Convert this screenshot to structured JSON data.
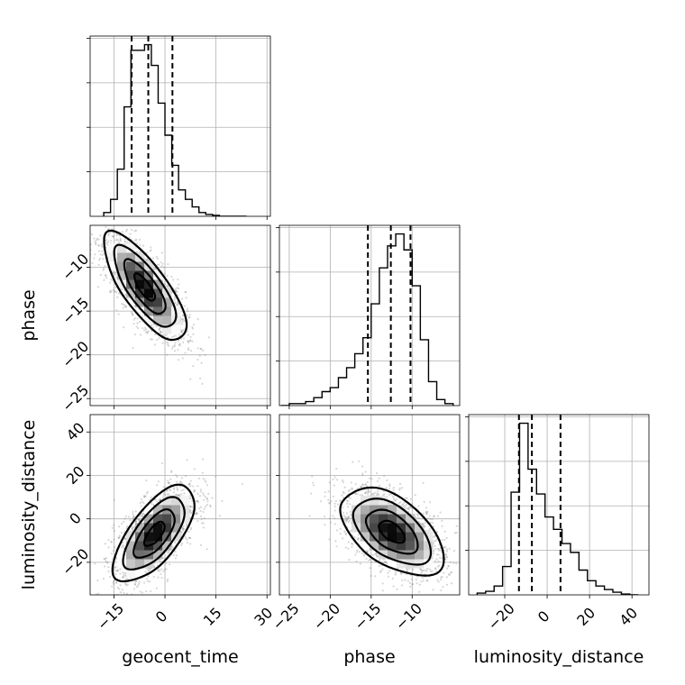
{
  "figure": {
    "type": "corner-plot",
    "parameters": [
      "geocent_time",
      "phase",
      "luminosity_distance"
    ]
  },
  "chart_data": [
    {
      "type": "histogram",
      "parameter": "geocent_time",
      "bins": [
        -18,
        -16,
        -14,
        -12,
        -10,
        -8,
        -6,
        -4,
        -2,
        0,
        2,
        4,
        6,
        8,
        10,
        12,
        14,
        16,
        18,
        20,
        22,
        24
      ],
      "counts": [
        0.02,
        0.09,
        0.25,
        0.58,
        0.88,
        0.88,
        0.91,
        0.8,
        0.6,
        0.43,
        0.27,
        0.14,
        0.09,
        0.05,
        0.02,
        0.01,
        0.005,
        0,
        0,
        0,
        0
      ],
      "quantiles": [
        -9.8,
        -4.9,
        2.2
      ],
      "xlim": [
        -22,
        31
      ],
      "grid": true
    },
    {
      "type": "scatter-density",
      "x_parameter": "geocent_time",
      "y_parameter": "phase",
      "center": [
        -6,
        -12.3
      ],
      "sigma": [
        6.0,
        3.1
      ],
      "correlation": -0.75,
      "xlim": [
        -22,
        31
      ],
      "ylim": [
        -25.8,
        -5.2
      ],
      "contour_levels": [
        "0.5-sigma",
        "1-sigma",
        "1.5-sigma",
        "2-sigma"
      ],
      "grid": true
    },
    {
      "type": "histogram",
      "parameter": "phase",
      "bins": [
        -26,
        -25,
        -24,
        -23,
        -22,
        -21,
        -20,
        -19,
        -18,
        -17,
        -16,
        -15,
        -14,
        -13,
        -12,
        -11,
        -10,
        -9,
        -8,
        -7,
        -6,
        -5
      ],
      "counts": [
        0,
        0.01,
        0.01,
        0.02,
        0.04,
        0.07,
        0.09,
        0.14,
        0.19,
        0.26,
        0.34,
        0.51,
        0.69,
        0.8,
        0.86,
        0.78,
        0.6,
        0.33,
        0.12,
        0.03,
        0.01
      ],
      "quantiles": [
        -15.4,
        -12.6,
        -10.2
      ],
      "xlim": [
        -26.2,
        -4.2
      ],
      "grid": true
    },
    {
      "type": "scatter-density",
      "x_parameter": "geocent_time",
      "y_parameter": "luminosity_distance",
      "center": [
        -3,
        -7
      ],
      "sigma": [
        6.0,
        11.0
      ],
      "correlation": 0.65,
      "xlim": [
        -22,
        31
      ],
      "ylim": [
        -35,
        48
      ],
      "contour_levels": [
        "0.5-sigma",
        "1-sigma",
        "1.5-sigma",
        "2-sigma"
      ],
      "grid": true
    },
    {
      "type": "scatter-density",
      "x_parameter": "phase",
      "y_parameter": "luminosity_distance",
      "center": [
        -12.5,
        -6
      ],
      "sigma": [
        3.2,
        10.0
      ],
      "correlation": -0.5,
      "xlim": [
        -26.2,
        -4.2
      ],
      "ylim": [
        -35,
        48
      ],
      "contour_levels": [
        "0.5-sigma",
        "1-sigma",
        "1.5-sigma",
        "2-sigma"
      ],
      "grid": true
    },
    {
      "type": "histogram",
      "parameter": "luminosity_distance",
      "bins": [
        -33,
        -29,
        -25,
        -21,
        -17,
        -13,
        -9,
        -5,
        -1,
        3,
        7,
        11,
        15,
        19,
        23,
        27,
        31,
        35,
        39,
        43
      ],
      "counts": [
        0.01,
        0.02,
        0.05,
        0.16,
        0.58,
        0.97,
        0.71,
        0.57,
        0.44,
        0.37,
        0.29,
        0.24,
        0.14,
        0.08,
        0.05,
        0.03,
        0.015,
        0.005,
        0
      ],
      "quantiles": [
        -13.3,
        -7.2,
        6.3
      ],
      "xlim": [
        -37,
        48
      ],
      "grid": true
    }
  ],
  "axes": {
    "geocent_time": {
      "label": "geocent_time",
      "ticks": [
        -15,
        0,
        15,
        30
      ],
      "tick_labels": [
        "−15",
        "0",
        "15",
        "30"
      ]
    },
    "phase": {
      "label": "phase",
      "ticks": [
        -25,
        -20,
        -15,
        -10
      ],
      "tick_labels": [
        "−25",
        "−20",
        "−15",
        "−10"
      ]
    },
    "luminosity_distance": {
      "label": "luminosity_distance",
      "ticks": [
        -20,
        0,
        20,
        40
      ],
      "tick_labels": [
        "−20",
        "0",
        "20",
        "40"
      ]
    },
    "hist_y_ticks": 4
  }
}
